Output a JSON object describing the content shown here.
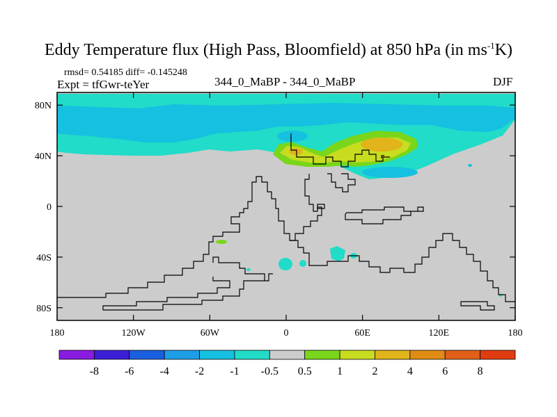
{
  "chart_data": {
    "type": "heatmap",
    "title_main": "Eddy Temperature flux (High Pass, Bloomfield) at 850 hPa (in ms",
    "title_sup": "-1",
    "title_end": "K)",
    "stats_text": "rmsd= 0.54185 diff= -0.145248",
    "expt_text": "Expt = tfGwr-teYer",
    "center_label": "344_0_MaBP - 344_0_MaBP",
    "season": "DJF",
    "x_range": [
      -180,
      180
    ],
    "y_range": [
      -90,
      90
    ],
    "x_ticks": [
      {
        "value": -180,
        "label": "180"
      },
      {
        "value": -120,
        "label": "120W"
      },
      {
        "value": -60,
        "label": "60W"
      },
      {
        "value": 0,
        "label": "0"
      },
      {
        "value": 60,
        "label": "60E"
      },
      {
        "value": 120,
        "label": "120E"
      },
      {
        "value": 180,
        "label": "180"
      }
    ],
    "y_ticks": [
      {
        "value": 80,
        "label": "80N"
      },
      {
        "value": 40,
        "label": "40N"
      },
      {
        "value": 0,
        "label": "0"
      },
      {
        "value": -40,
        "label": "40S"
      },
      {
        "value": -80,
        "label": "80S"
      }
    ],
    "colorbar": {
      "levels": [
        "-8",
        "-6",
        "-4",
        "-2",
        "-1",
        "-0.5",
        "0.5",
        "1",
        "2",
        "4",
        "6",
        "8"
      ],
      "colors": [
        "#8a1be0",
        "#3a1fd8",
        "#1a5fe0",
        "#1f9ee8",
        "#16c0e0",
        "#20dcc8",
        "#cccccc",
        "#7ad61a",
        "#c8dc20",
        "#e0b41a",
        "#e08c14",
        "#e0601a",
        "#e03c10"
      ]
    },
    "fields": [
      {
        "band": "-1 to -0.5",
        "color": "#20dcc8",
        "note": "broad band 55N-90N"
      },
      {
        "band": "-2 to -1",
        "color": "#16c0e0",
        "note": "embedded 60N-85N"
      },
      {
        "band": "0.5 to 1",
        "color": "#7ad61a",
        "note": "35N-50N near 0-90E"
      },
      {
        "band": "1 to 2",
        "color": "#c8dc20",
        "note": "core"
      },
      {
        "band": "2 to 4",
        "color": "#e0b41a",
        "note": "max near 75E,45N"
      }
    ]
  }
}
